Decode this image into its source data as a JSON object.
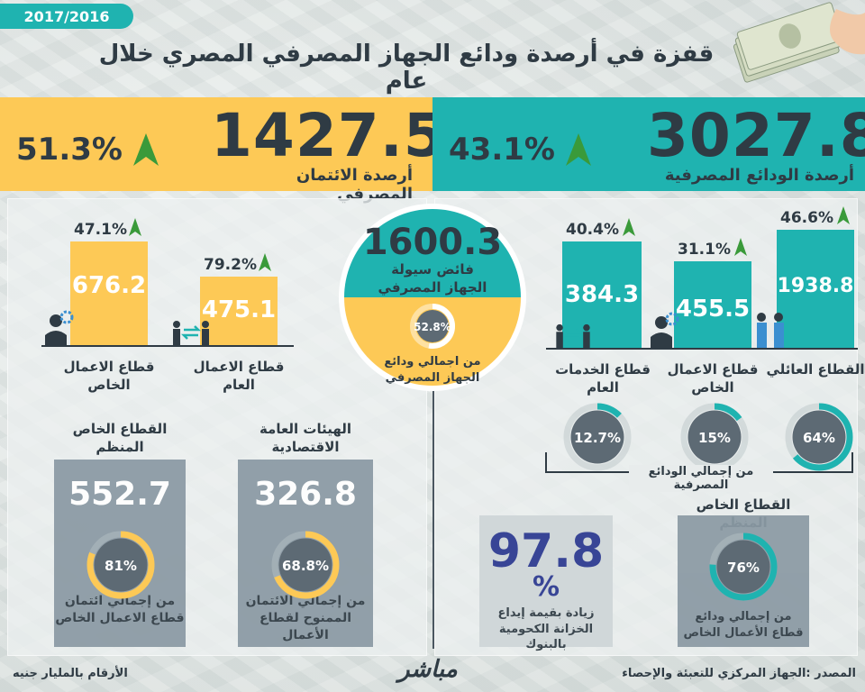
{
  "header": {
    "year": "2017/2016",
    "title": "قفزة في أرصدة ودائع الجهاز المصرفي المصري خلال عام"
  },
  "credit": {
    "value": "1427.5",
    "label": "أرصدة الائتمان المصرفي",
    "growth": "51.3%"
  },
  "deposits": {
    "value": "3027.8",
    "label": "أرصدة الودائع المصرفية",
    "growth": "43.1%"
  },
  "liquidity": {
    "value": "1600.3",
    "label_line1": "فائض سيولة",
    "label_line2": "الجهاز المصرفي",
    "share": "52.8%",
    "share_fraction": 0.528,
    "share_label_line1": "من اجمالي ودائع",
    "share_label_line2": "الجهاز المصرفي"
  },
  "credit_sectors": [
    {
      "value": "676.2",
      "growth": "47.1%",
      "label_line1": "قطاع الاعمال",
      "label_line2": "الخاص"
    },
    {
      "value": "475.1",
      "growth": "79.2%",
      "label_line1": "قطاع الاعمال",
      "label_line2": "العام"
    }
  ],
  "deposit_sectors": [
    {
      "value": "384.3",
      "growth": "40.4%",
      "label_line1": "قطاع الخدمات",
      "label_line2": "العام",
      "share": "12.7%",
      "share_fraction": 0.127
    },
    {
      "value": "455.5",
      "growth": "31.1%",
      "label_line1": "قطاع الاعمال",
      "label_line2": "الخاص",
      "share": "15%",
      "share_fraction": 0.15
    },
    {
      "value": "1938.8",
      "growth": "46.6%",
      "label_line1": "القطاع العائلي",
      "label_line2": "",
      "share": "64%",
      "share_fraction": 0.64
    }
  ],
  "deposit_share_caption": "من إجمالي الودائع المصرفية",
  "credit_boxes": [
    {
      "title_line1": "القطاع الخاص",
      "title_line2": "المنظم",
      "value": "552.7",
      "share": "81%",
      "share_fraction": 0.81,
      "caption_line1": "من إجمالي ائتمان",
      "caption_line2": "قطاع الاعمال الخاص"
    },
    {
      "title_line1": "الهيئات العامة",
      "title_line2": "الاقتصادية",
      "value": "326.8",
      "share": "68.8%",
      "share_fraction": 0.688,
      "caption_line1": "من إجمالي الائتمان",
      "caption_line2": "الممنوح لقطاع الأعمال"
    }
  ],
  "treasury": {
    "value": "97.8",
    "unit": "%",
    "caption_line1": "زيادة  بقيمة إيداع",
    "caption_line2": "الخزانة الكحومية بالبنوك"
  },
  "private_organized": {
    "title": "القطاع الخاص المنظم",
    "share": "76%",
    "share_fraction": 0.76,
    "caption_line1": "من إجمالي ودائع",
    "caption_line2": "قطاع الأعمال الخاص"
  },
  "footer": {
    "note": "الأرقام بالمليار جنيه",
    "source": "المصدر :الجهاز المركزي للتعبئة والإحصاء",
    "logo": "مباشر"
  },
  "colors": {
    "teal": "#1fb3b0",
    "yellow": "#fdc956",
    "dark": "#2f3b44",
    "arrow_green": "#3a9a3a",
    "gauge_gray": "#5d6a74"
  }
}
